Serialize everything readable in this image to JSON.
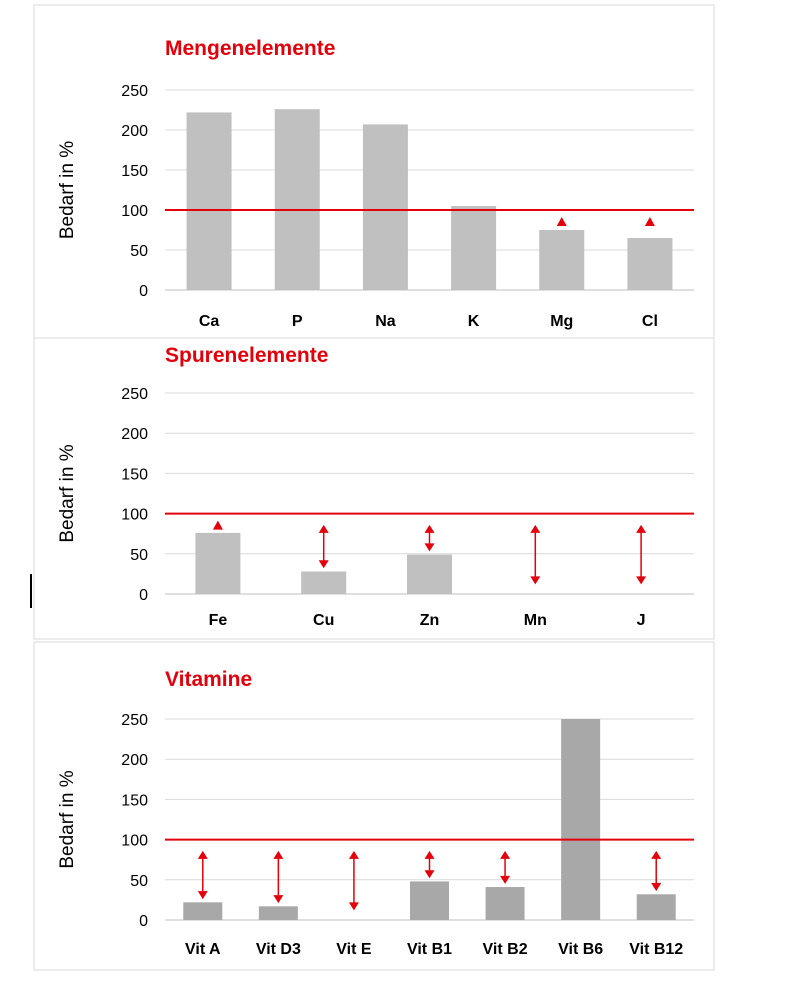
{
  "chart_data": [
    {
      "type": "bar",
      "title": "Mengenelemente",
      "ylabel": "Bedarf in %",
      "xlabel": "",
      "ylim": [
        0,
        250
      ],
      "yticks": [
        0,
        50,
        100,
        150,
        200,
        250
      ],
      "categories": [
        "Ca",
        "P",
        "Na",
        "K",
        "Mg",
        "Cl"
      ],
      "values": [
        222,
        226,
        207,
        105,
        75,
        65
      ],
      "reference_line": 100,
      "range_markers": [
        {
          "category": "Mg",
          "from": 80,
          "to": 80,
          "style": "arrow-up"
        },
        {
          "category": "Cl",
          "from": 80,
          "to": 80,
          "style": "arrow-up"
        }
      ],
      "colors": {
        "bar": "#c0c0c0",
        "reference": "#e3000b",
        "title": "#e3000b",
        "marker": "#e3000b"
      }
    },
    {
      "type": "bar",
      "title": "Spurenelemente",
      "ylabel": "Bedarf in %",
      "xlabel": "",
      "ylim": [
        0,
        250
      ],
      "yticks": [
        0,
        50,
        100,
        150,
        200,
        250
      ],
      "categories": [
        "Fe",
        "Cu",
        "Zn",
        "Mn",
        "J"
      ],
      "values": [
        76,
        28,
        49,
        0,
        0
      ],
      "reference_line": 100,
      "range_markers": [
        {
          "category": "Fe",
          "from": 80,
          "to": 80,
          "style": "arrow-up"
        },
        {
          "category": "Cu",
          "from": 32,
          "to": 86,
          "style": "double-arrow"
        },
        {
          "category": "Zn",
          "from": 53,
          "to": 86,
          "style": "double-arrow"
        },
        {
          "category": "Mn",
          "from": 12,
          "to": 86,
          "style": "double-arrow"
        },
        {
          "category": "J",
          "from": 12,
          "to": 86,
          "style": "double-arrow"
        }
      ],
      "colors": {
        "bar": "#c0c0c0",
        "reference": "#e3000b",
        "title": "#e3000b",
        "marker": "#e3000b"
      }
    },
    {
      "type": "bar",
      "title": "Vitamine",
      "ylabel": "Bedarf in %",
      "xlabel": "",
      "ylim": [
        0,
        250
      ],
      "yticks": [
        0,
        50,
        100,
        150,
        200,
        250
      ],
      "categories": [
        "Vit A",
        "Vit D3",
        "Vit E",
        "Vit B1",
        "Vit B2",
        "Vit B6",
        "Vit B12"
      ],
      "values": [
        22,
        17,
        0,
        48,
        41,
        250,
        32
      ],
      "reference_line": 100,
      "range_markers": [
        {
          "category": "Vit A",
          "from": 26,
          "to": 86,
          "style": "double-arrow"
        },
        {
          "category": "Vit D3",
          "from": 21,
          "to": 86,
          "style": "double-arrow"
        },
        {
          "category": "Vit E",
          "from": 12,
          "to": 86,
          "style": "double-arrow"
        },
        {
          "category": "Vit B1",
          "from": 52,
          "to": 86,
          "style": "double-arrow"
        },
        {
          "category": "Vit B2",
          "from": 45,
          "to": 86,
          "style": "double-arrow"
        },
        {
          "category": "Vit B12",
          "from": 36,
          "to": 86,
          "style": "double-arrow"
        }
      ],
      "colors": {
        "bar": "#a8a8a8",
        "reference": "#e3000b",
        "title": "#e3000b",
        "marker": "#e3000b"
      }
    }
  ]
}
